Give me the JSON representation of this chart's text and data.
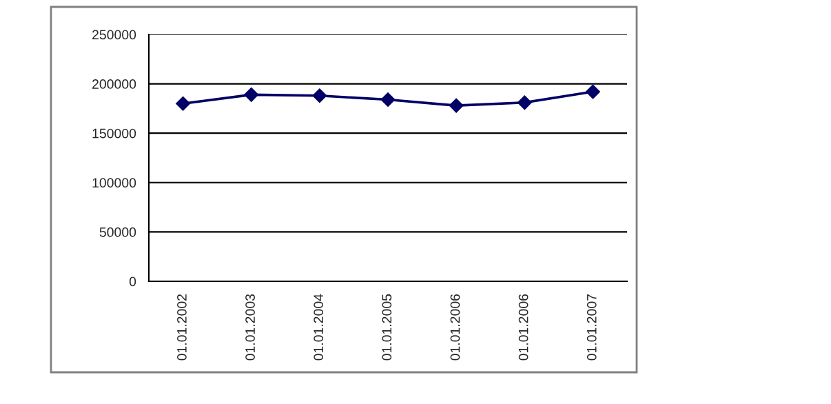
{
  "chart_data": {
    "type": "line",
    "categories": [
      "01.01.2002",
      "01.01.2003",
      "01.01.2004",
      "01.01.2005",
      "01.01.2006",
      "01.01.2006",
      "01.01.2007"
    ],
    "series": [
      {
        "color": "#000066",
        "values": [
          180000,
          189000,
          188000,
          184000,
          178000,
          181000,
          192000
        ]
      }
    ],
    "ylim": [
      0,
      250000
    ],
    "yticks": [
      0,
      50000,
      100000,
      150000,
      200000,
      250000
    ],
    "grid": "y",
    "marker": "diamond",
    "line_style": "solid",
    "legend": false
  }
}
